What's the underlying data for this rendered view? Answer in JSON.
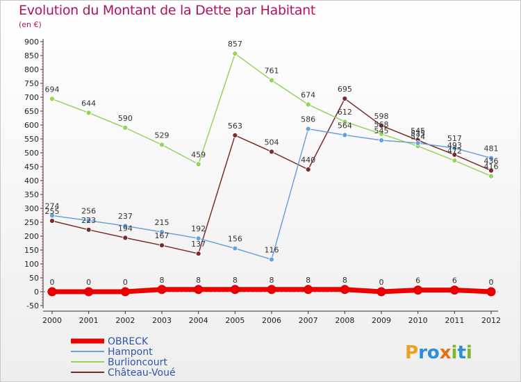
{
  "chart_data": {
    "type": "line",
    "title": "Evolution du Montant de la Dette par Habitant",
    "subtitle": "(en €)",
    "xlabel": "",
    "ylabel": "",
    "categories": [
      "2000",
      "2001",
      "2002",
      "2003",
      "2004",
      "2005",
      "2006",
      "2007",
      "2008",
      "2009",
      "2010",
      "2011",
      "2012"
    ],
    "ylim": [
      -50,
      900
    ],
    "yticks": [
      -50,
      0,
      50,
      100,
      150,
      200,
      250,
      300,
      350,
      400,
      450,
      500,
      550,
      600,
      650,
      700,
      750,
      800,
      850,
      900
    ],
    "grid": false,
    "series": [
      {
        "name": "OBRECK",
        "color": "#ee0000",
        "values": [
          0,
          0,
          0,
          8,
          8,
          8,
          8,
          8,
          8,
          0,
          6,
          6,
          0
        ]
      },
      {
        "name": "Hampont",
        "color": "#6aa2d8",
        "values": [
          274,
          256,
          237,
          215,
          192,
          156,
          116,
          586,
          564,
          545,
          535,
          517,
          481
        ]
      },
      {
        "name": "Burlioncourt",
        "color": "#93d45d",
        "values": [
          694,
          644,
          590,
          529,
          459,
          857,
          761,
          674,
          612,
          568,
          524,
          472,
          416
        ]
      },
      {
        "name": "Château-Voué",
        "color": "#7a2b2b",
        "values": [
          255,
          223,
          194,
          167,
          137,
          563,
          504,
          440,
          695,
          598,
          545,
          493,
          436
        ]
      }
    ]
  },
  "legend": {
    "items": [
      {
        "name": "OBRECK",
        "color": "#ee0000",
        "text_color": "#2e55ad"
      },
      {
        "name": "Hampont",
        "color": "#6aa2d8",
        "text_color": "#2e55ad"
      },
      {
        "name": "Burlioncourt",
        "color": "#93d45d",
        "text_color": "#2e55ad"
      },
      {
        "name": "Château-Voué",
        "color": "#7a2b2b",
        "text_color": "#2e55ad"
      }
    ]
  },
  "logo": {
    "text": "Proxiti",
    "letters": [
      {
        "ch": "P",
        "color": "#f0a020"
      },
      {
        "ch": "r",
        "color": "#2a8fd8"
      },
      {
        "ch": "o",
        "color": "#2a8fd8"
      },
      {
        "ch": "x",
        "color": "#e07010"
      },
      {
        "ch": "i",
        "color": "#7ab830"
      },
      {
        "ch": "t",
        "color": "#2a8fd8"
      },
      {
        "ch": "i",
        "color": "#7ab830"
      }
    ]
  }
}
